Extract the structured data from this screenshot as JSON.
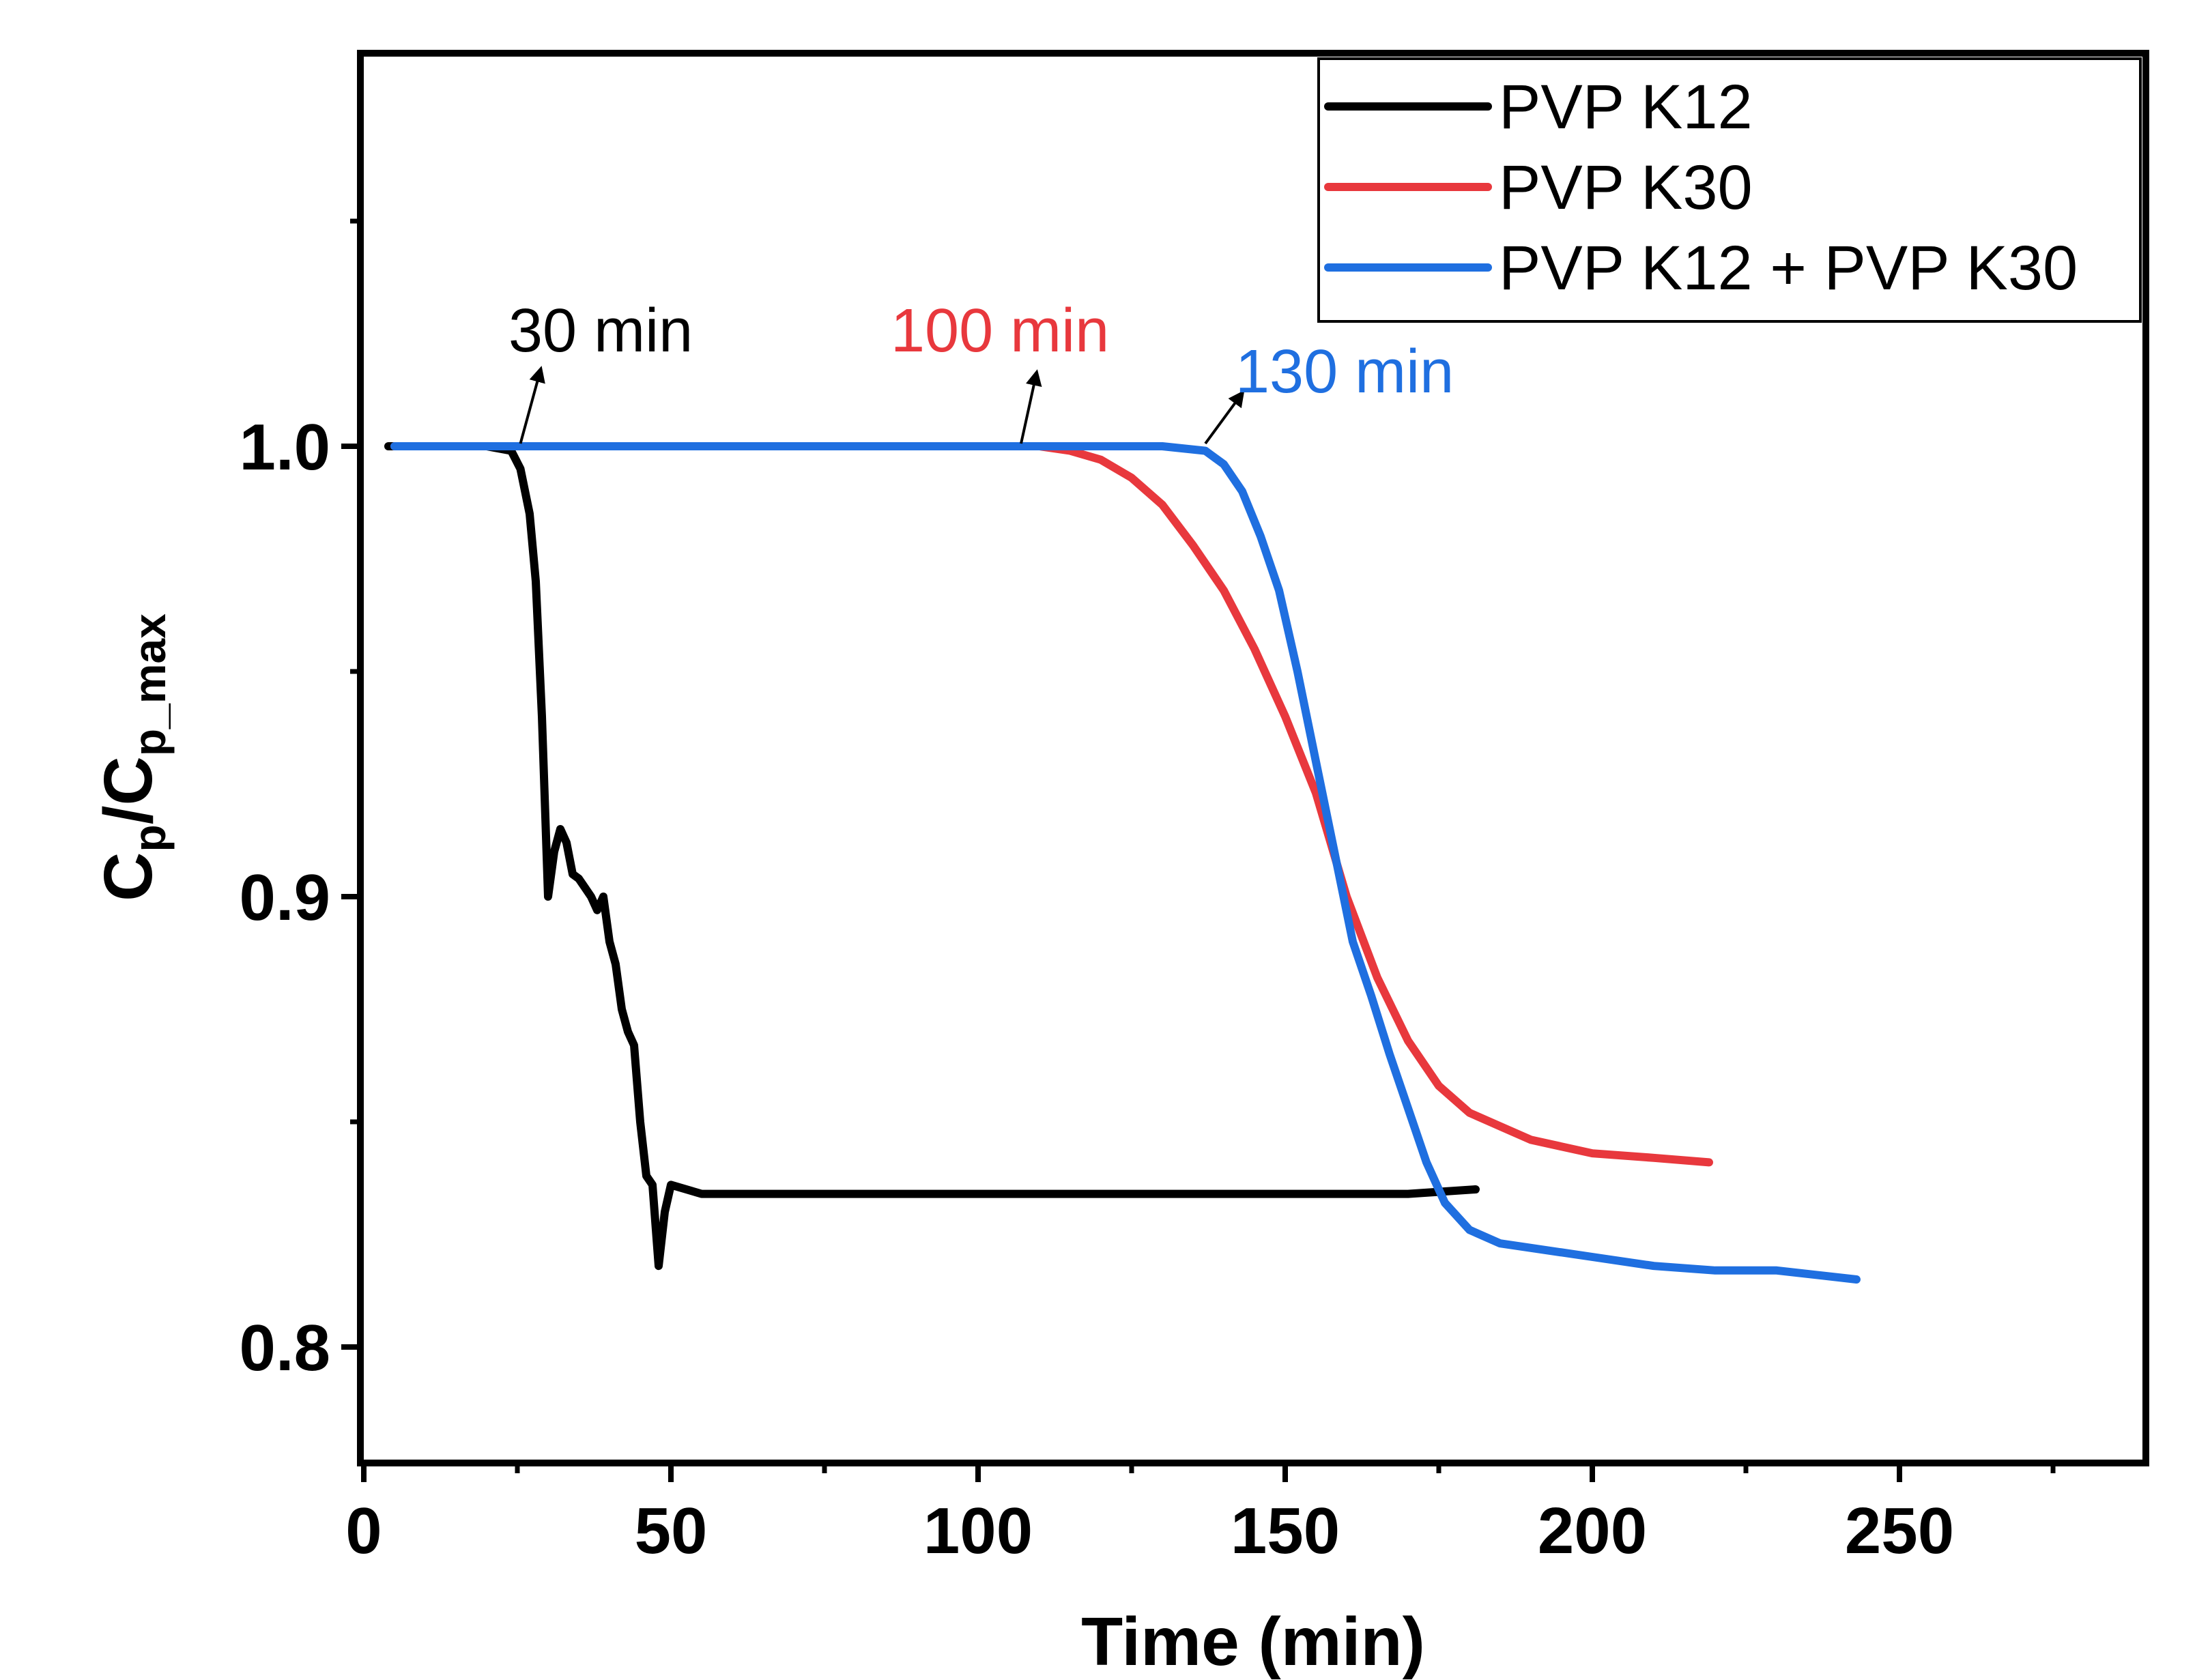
{
  "chart_data": {
    "type": "line",
    "xlabel": "Time (min)",
    "ylabel": {
      "main": "C",
      "sub1": "p",
      "slash": "/C",
      "sub2": "p_max"
    },
    "xlim": [
      0,
      290
    ],
    "ylim": [
      0.775,
      1.09
    ],
    "x_ticks": [
      0,
      50,
      100,
      150,
      200,
      250
    ],
    "x_tick_labels": [
      "0",
      "50",
      "100",
      "150",
      "200",
      "250"
    ],
    "y_ticks": [
      0.8,
      0.9,
      1.0
    ],
    "y_tick_labels": [
      "0.8",
      "0.9",
      "1.0"
    ],
    "legend": {
      "position": "top-right"
    },
    "series": [
      {
        "name": "PVP K12",
        "color": "#000000",
        "x": [
          4,
          8,
          12,
          16,
          20,
          24,
          25.5,
          27,
          28,
          29,
          30,
          31,
          32,
          33,
          34,
          35,
          36,
          37,
          38,
          39,
          40,
          41,
          42,
          43,
          44,
          45,
          46,
          47,
          48,
          49,
          50,
          55,
          60,
          70,
          80,
          90,
          100,
          110,
          120,
          130,
          140,
          150,
          160,
          170,
          181
        ],
        "y": [
          1.0,
          1.0,
          1.0,
          1.0,
          1.0,
          0.999,
          0.995,
          0.985,
          0.97,
          0.94,
          0.9,
          0.91,
          0.915,
          0.912,
          0.905,
          0.904,
          0.902,
          0.9,
          0.897,
          0.9,
          0.89,
          0.885,
          0.875,
          0.87,
          0.867,
          0.85,
          0.838,
          0.836,
          0.818,
          0.83,
          0.836,
          0.834,
          0.834,
          0.834,
          0.834,
          0.834,
          0.834,
          0.834,
          0.834,
          0.834,
          0.834,
          0.834,
          0.834,
          0.834,
          0.835
        ]
      },
      {
        "name": "PVP K30",
        "color": "#e8383d",
        "x": [
          5,
          20,
          40,
          60,
          80,
          100,
          110,
          115,
          120,
          125,
          130,
          135,
          140,
          145,
          150,
          155,
          160,
          165,
          170,
          175,
          180,
          185,
          190,
          200,
          210,
          219
        ],
        "y": [
          1.0,
          1.0,
          1.0,
          1.0,
          1.0,
          1.0,
          1.0,
          0.999,
          0.997,
          0.993,
          0.987,
          0.978,
          0.968,
          0.955,
          0.94,
          0.923,
          0.9,
          0.882,
          0.868,
          0.858,
          0.852,
          0.849,
          0.846,
          0.843,
          0.842,
          0.841
        ]
      },
      {
        "name": "PVP K12 + PVP K30",
        "color": "#1f6fe0",
        "x": [
          5,
          20,
          40,
          60,
          80,
          100,
          120,
          130,
          137,
          140,
          143,
          146,
          149,
          152,
          155,
          158,
          161,
          164,
          167,
          170,
          173,
          176,
          180,
          185,
          190,
          200,
          210,
          220,
          230,
          243
        ],
        "y": [
          1.0,
          1.0,
          1.0,
          1.0,
          1.0,
          1.0,
          1.0,
          1.0,
          0.999,
          0.996,
          0.99,
          0.98,
          0.968,
          0.95,
          0.93,
          0.91,
          0.89,
          0.878,
          0.865,
          0.853,
          0.841,
          0.832,
          0.826,
          0.823,
          0.822,
          0.82,
          0.818,
          0.817,
          0.817,
          0.815
        ]
      }
    ],
    "annotations": [
      {
        "text": "30 min",
        "color": "#000000",
        "x": 25.5,
        "y": 1.0
      },
      {
        "text": "100 min",
        "color": "#e8383d",
        "x": 107,
        "y": 1.0
      },
      {
        "text": "130 min",
        "color": "#1f6fe0",
        "x": 137,
        "y": 1.0
      }
    ]
  }
}
